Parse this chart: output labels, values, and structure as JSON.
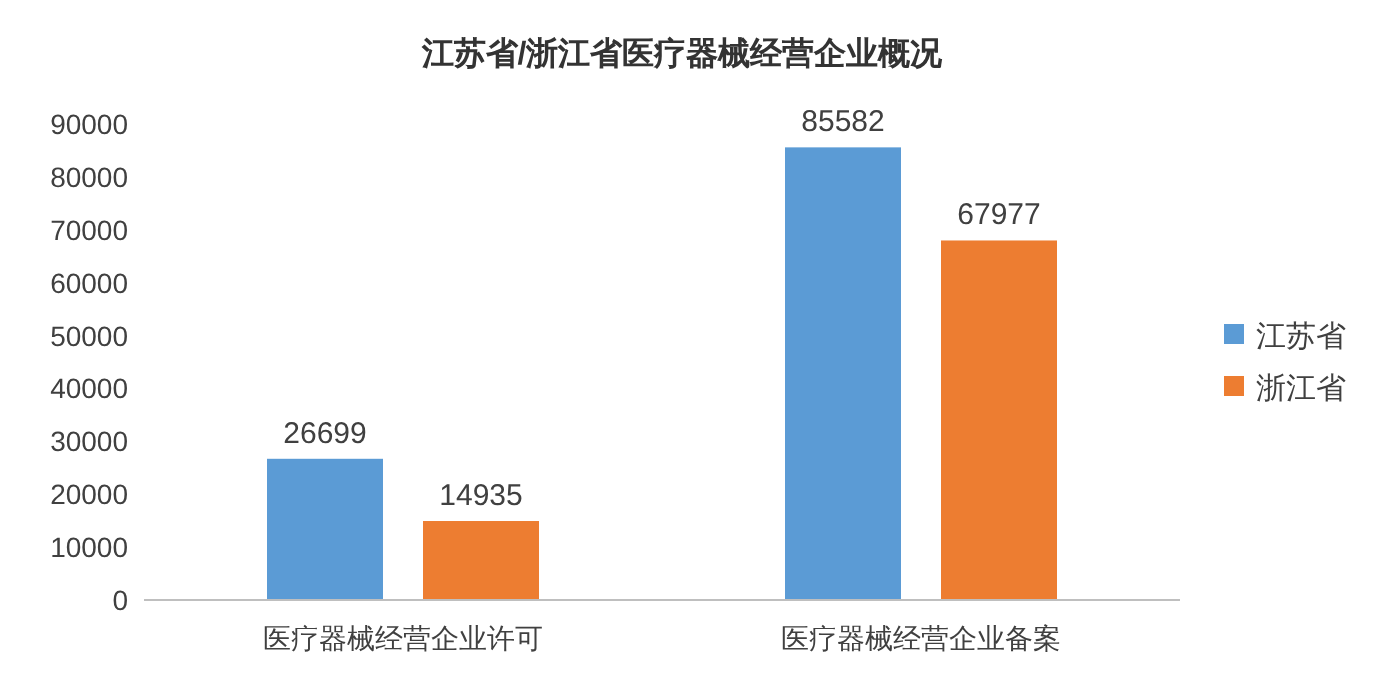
{
  "chart_data": {
    "type": "bar",
    "title": "江苏省/浙江省医疗器械经营企业概况",
    "categories": [
      "医疗器械经营企业许可",
      "医疗器械经营企业备案"
    ],
    "series": [
      {
        "name": "江苏省",
        "color": "#5b9bd5",
        "values": [
          26699,
          85582
        ]
      },
      {
        "name": "浙江省",
        "color": "#ed7d31",
        "values": [
          14935,
          67977
        ]
      }
    ],
    "ylim": [
      0,
      90000
    ],
    "yticks": [
      0,
      10000,
      20000,
      30000,
      40000,
      50000,
      60000,
      70000,
      80000,
      90000
    ],
    "data_labels": true,
    "legend": "right",
    "grid": false
  }
}
